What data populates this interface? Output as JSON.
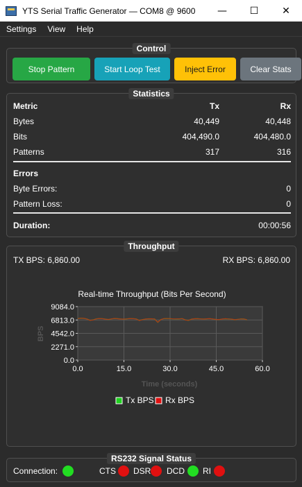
{
  "window": {
    "title": "YTS Serial Traffic Generator — COM8 @ 9600",
    "minimize_glyph": "—",
    "maximize_glyph": "☐",
    "close_glyph": "✕"
  },
  "menu": [
    "Settings",
    "View",
    "Help"
  ],
  "control": {
    "title": "Control",
    "buttons": {
      "stop_pattern": "Stop Pattern",
      "start_loop_test": "Start Loop Test",
      "inject_error": "Inject Error",
      "clear_stats": "Clear Stats"
    },
    "colors": {
      "stop": "#27a745",
      "loop": "#17a2b8",
      "inject": "#ffc107",
      "clear": "#6c757d"
    }
  },
  "statistics": {
    "title": "Statistics",
    "headers": {
      "metric": "Metric",
      "tx": "Tx",
      "rx": "Rx"
    },
    "rows": [
      {
        "metric": "Bytes",
        "tx": "40,449",
        "rx": "40,448"
      },
      {
        "metric": "Bits",
        "tx": "404,490.0",
        "rx": "404,480.0"
      },
      {
        "metric": "Patterns",
        "tx": "317",
        "rx": "316"
      }
    ],
    "errors_header": "Errors",
    "errors": [
      {
        "label": "Byte Errors:",
        "value": "0"
      },
      {
        "label": "Pattern Loss:",
        "value": "0"
      }
    ],
    "duration": {
      "label": "Duration:",
      "value": "00:00:56"
    }
  },
  "throughput": {
    "title": "Throughput",
    "tx_bps": "TX BPS: 6,860.00",
    "rx_bps": "RX BPS: 6,860.00"
  },
  "chart_data": {
    "type": "line",
    "title": "Real-time Throughput (Bits Per Second)",
    "xlabel": "Time (seconds)",
    "ylabel": "BPS",
    "xlim": [
      0,
      60
    ],
    "ylim": [
      0,
      9084
    ],
    "xticks": [
      "0.0",
      "15.0",
      "30.0",
      "45.0",
      "60.0"
    ],
    "yticks": [
      "0.0",
      "2271.0",
      "4542.0",
      "6813.0",
      "9084.0"
    ],
    "grid": true,
    "legend_position": "bottom",
    "x": [
      0,
      1,
      2,
      3,
      4,
      5,
      6,
      7,
      8,
      9,
      10,
      11,
      12,
      13,
      14,
      15,
      16,
      17,
      18,
      19,
      20,
      21,
      22,
      23,
      24,
      25,
      26,
      27,
      28,
      29,
      30,
      31,
      32,
      33,
      34,
      35,
      36,
      37,
      38,
      39,
      40,
      41,
      42,
      43,
      44,
      45,
      46,
      47,
      48,
      49,
      50,
      51,
      52,
      53,
      54,
      55
    ],
    "series": [
      {
        "name": "Tx BPS",
        "color": "#1fd11f",
        "values": [
          7050,
          7120,
          7080,
          6980,
          6750,
          6830,
          7010,
          7060,
          7040,
          6960,
          6890,
          7000,
          7070,
          7030,
          6980,
          6950,
          7010,
          7060,
          7040,
          6990,
          6720,
          6880,
          6960,
          7020,
          7010,
          6980,
          6420,
          6890,
          7040,
          7060,
          7030,
          7000,
          6980,
          7010,
          7040,
          6820,
          6740,
          6960,
          7020,
          7030,
          6990,
          6970,
          7010,
          7040,
          6960,
          6900,
          6880,
          6980,
          7020,
          6990,
          6950,
          6860,
          6920,
          6990,
          6970,
          6860
        ]
      },
      {
        "name": "Rx BPS",
        "color": "#e01010",
        "values": [
          7040,
          7110,
          7090,
          6970,
          6760,
          6820,
          7000,
          7070,
          7030,
          6950,
          6900,
          6990,
          7080,
          7020,
          6970,
          6960,
          7000,
          7070,
          7030,
          6980,
          6730,
          6870,
          6970,
          7010,
          7020,
          6970,
          6430,
          6880,
          7050,
          7050,
          7040,
          6990,
          6990,
          7000,
          7050,
          6810,
          6750,
          6950,
          7030,
          7020,
          7000,
          6960,
          7020,
          7030,
          6970,
          6890,
          6890,
          6970,
          7030,
          6980,
          6960,
          6850,
          6930,
          6980,
          6980,
          6860
        ]
      }
    ]
  },
  "signal_status": {
    "title": "RS232 Signal Status",
    "connection_label": "Connection:",
    "signals": [
      "CTS",
      "DSR",
      "DCD",
      "RI"
    ],
    "states": {
      "connection": "on",
      "CTS": "off",
      "DSR": "off",
      "DCD": "on",
      "RI": "off"
    },
    "colors": {
      "on": "#22dd22",
      "off": "#e01010"
    }
  }
}
